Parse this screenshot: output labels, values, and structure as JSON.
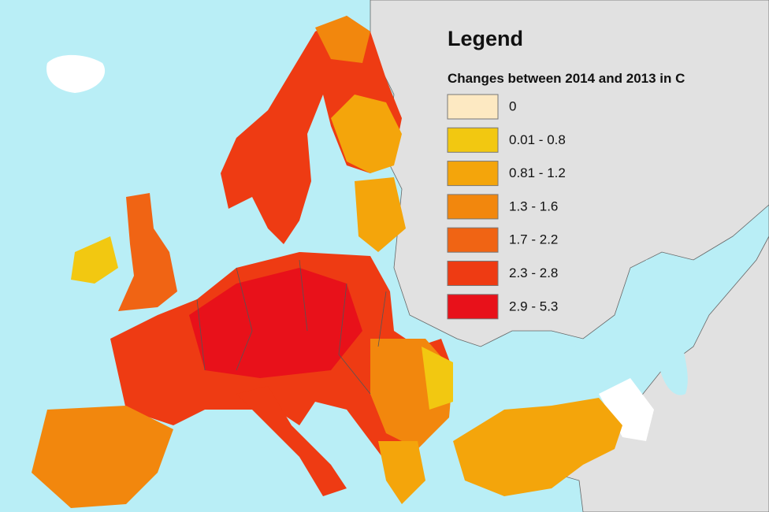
{
  "legend": {
    "title": "Legend",
    "subtitle": "Changes between 2014 and 2013 in C",
    "items": [
      {
        "label": "0",
        "color": "#fde9c2"
      },
      {
        "label": "0.01 - 0.8",
        "color": "#f2c811"
      },
      {
        "label": "0.81 - 1.2",
        "color": "#f4a50b"
      },
      {
        "label": "1.3 - 1.6",
        "color": "#f2870d"
      },
      {
        "label": "1.7 - 2.2",
        "color": "#f06414"
      },
      {
        "label": "2.3 - 2.8",
        "color": "#ee3b13"
      },
      {
        "label": "2.9 - 5.3",
        "color": "#e8111a"
      }
    ]
  }
}
